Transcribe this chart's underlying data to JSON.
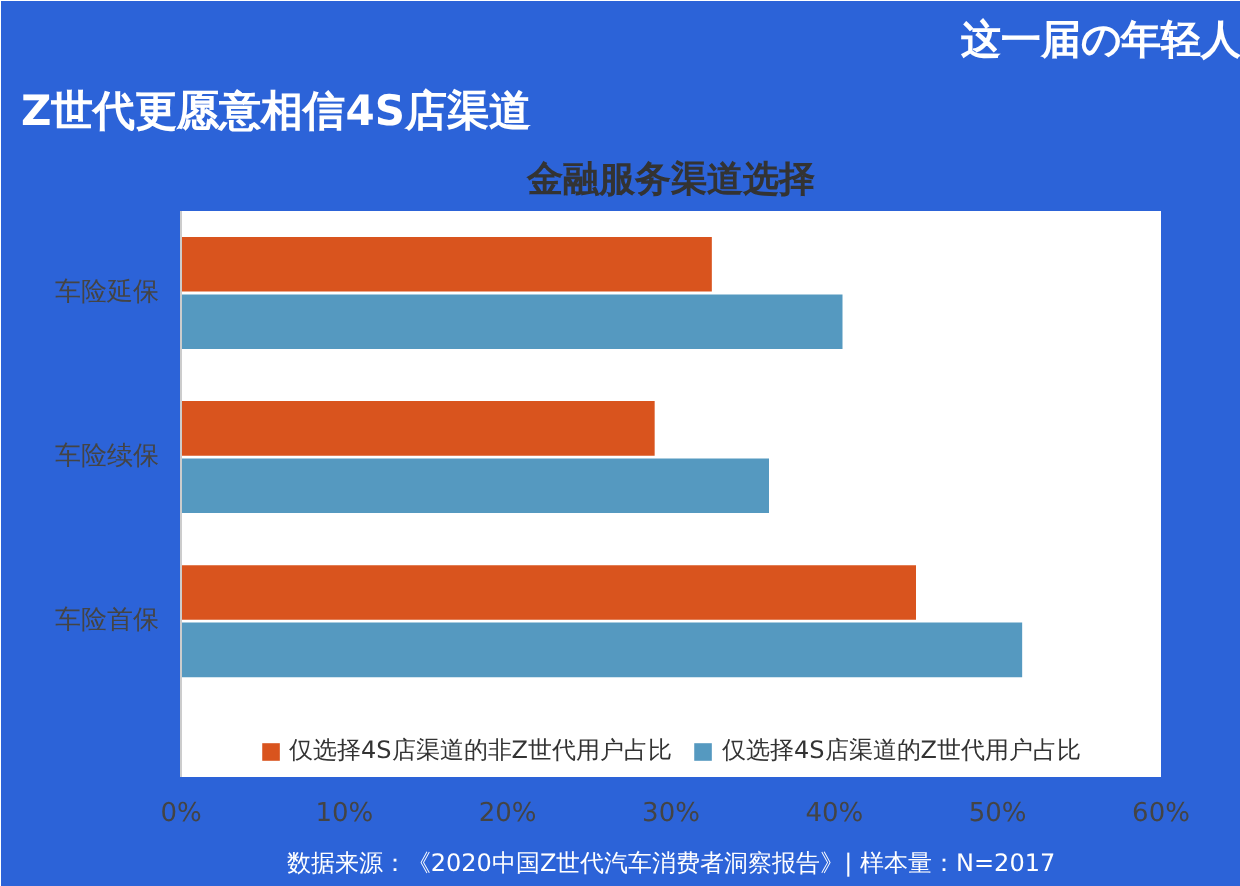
{
  "chart_data": {
    "type": "bar",
    "orientation": "horizontal",
    "title": "金融服务渠道选择",
    "subtitle": "Z世代更愿意相信4S店渠道",
    "categories": [
      "车险延保",
      "车险续保",
      "车险首保"
    ],
    "series": [
      {
        "name": "仅选择4S店渠道的非Z世代用户占比",
        "color": "#d9541e",
        "values": [
          32.5,
          29,
          45
        ]
      },
      {
        "name": "仅选择4S店渠道的Z世代用户占比",
        "color": "#5599c0",
        "values": [
          40.5,
          36,
          51.5
        ]
      }
    ],
    "xlim": [
      0,
      60
    ],
    "xticks": [
      {
        "value": 0,
        "label": "0%"
      },
      {
        "value": 10,
        "label": "10%"
      },
      {
        "value": 20,
        "label": "20%"
      },
      {
        "value": 30,
        "label": "30%"
      },
      {
        "value": 40,
        "label": "40%"
      },
      {
        "value": 50,
        "label": "50%"
      },
      {
        "value": 60,
        "label": "60%"
      }
    ],
    "grid": false,
    "legend": "bottom",
    "annotations": [
      "这一届の年轻人",
      "数据来源：《2020中国Z世代汽车消费者洞察报告》| 样本量：N=2017"
    ]
  }
}
